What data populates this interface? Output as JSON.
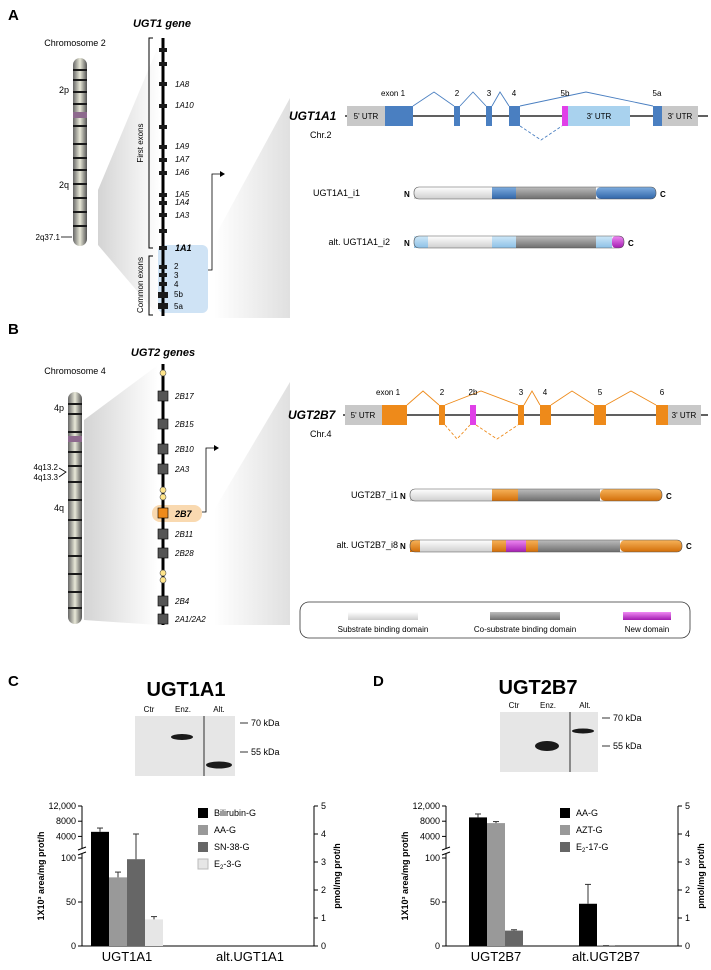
{
  "panels": {
    "a": "A",
    "b": "B",
    "c": "C",
    "d": "D"
  },
  "colors": {
    "ugt1_blue": "#4a7fc1",
    "ugt1_light": "#a9d2ee",
    "ugt2_orange": "#ee8a1a",
    "new_magenta": "#e040e8",
    "utr_gray": "#c8c8c8",
    "highlight_blue": "#cfe3f5",
    "highlight_orange": "#f9d9b0"
  },
  "panel_a": {
    "title": "UGT1 gene",
    "chromosome": "Chromosome 2",
    "arm_p": "2p",
    "arm_q": "2q",
    "locus": "2q37.1",
    "first_exons_label": "First exons",
    "common_exons_label": "Common exons",
    "first_exons": [
      "1A8",
      "1A10",
      "1A9",
      "1A7",
      "1A6",
      "1A5",
      "1A4",
      "1A3"
    ],
    "highlight_exon": "1A1",
    "common_exons": [
      "2",
      "3",
      "4",
      "5b",
      "5a"
    ],
    "gene_name": "UGT1A1",
    "gene_chr": "Chr.2",
    "utr5": "5' UTR",
    "utr3": "3' UTR",
    "utr3_inner": "3' UTR",
    "exon_labels": [
      "exon 1",
      "2",
      "3",
      "4",
      "5b",
      "5a"
    ],
    "isoform1": "UGT1A1_i1",
    "isoform2": "alt. UGT1A1_i2",
    "n_term": "N",
    "c_term": "C"
  },
  "panel_b": {
    "title": "UGT2 genes",
    "chromosome": "Chromosome 4",
    "arm_p": "4p",
    "arm_q": "4q",
    "locus1": "4q13.2",
    "locus2": "4q13.3",
    "genes": [
      "2B17",
      "2B15",
      "2B10",
      "2A3",
      "2B7",
      "2B11",
      "2B28",
      "2B4",
      "2A1/2A2"
    ],
    "highlight_gene": "2B7",
    "gene_name": "UGT2B7",
    "gene_chr": "Chr.4",
    "utr5": "5' UTR",
    "utr3": "3' UTR",
    "exon_labels": [
      "exon 1",
      "2",
      "2b",
      "3",
      "4",
      "5",
      "6"
    ],
    "isoform1": "UGT2B7_i1",
    "isoform2": "alt. UGT2B7_i8",
    "n_term": "N",
    "c_term": "C"
  },
  "legend": {
    "substrate": "Substrate binding domain",
    "cosubstrate": "Co-substrate binding domain",
    "new": "New domain"
  },
  "panel_c": {
    "blot_title": "UGT1A1",
    "lanes": [
      "Ctr",
      "Enz.",
      "Alt."
    ],
    "mw": [
      "70 kDa",
      "55 kDa"
    ],
    "chart_data": {
      "type": "bar",
      "categories": [
        "UGT1A1",
        "alt.UGT1A1"
      ],
      "series": [
        {
          "name": "Bilirubin-G",
          "values": [
            5200,
            0
          ],
          "errors": [
            1000,
            0
          ],
          "axis": "left",
          "color": "#000000"
        },
        {
          "name": "AA-G",
          "values": [
            78,
            0
          ],
          "errors": [
            6,
            0
          ],
          "axis": "left",
          "color": "#999999"
        },
        {
          "name": "SN-38-G",
          "values": [
            3.1,
            0
          ],
          "errors": [
            0.9,
            0
          ],
          "axis": "right",
          "color": "#666666"
        },
        {
          "name": "E2-3-G",
          "values": [
            0.95,
            0
          ],
          "errors": [
            0.1,
            0
          ],
          "axis": "right",
          "color": "#e6e6e6"
        }
      ],
      "ylabel_left": "1X10³ area/mg prot/h",
      "ylabel_right": "pmol/mg prot/h",
      "left_ticks_low": [
        "0",
        "50",
        "100"
      ],
      "left_ticks_high": [
        "4000",
        "8000",
        "12,000"
      ],
      "right_ticks": [
        "0",
        "1",
        "2",
        "3",
        "4",
        "5"
      ],
      "ylim_right": [
        0,
        5
      ]
    }
  },
  "panel_d": {
    "blot_title": "UGT2B7",
    "lanes": [
      "Ctr",
      "Enz.",
      "Alt."
    ],
    "mw": [
      "70 kDa",
      "55 kDa"
    ],
    "chart_data": {
      "type": "bar",
      "categories": [
        "UGT2B7",
        "alt.UGT2B7"
      ],
      "series": [
        {
          "name": "AA-G",
          "values": [
            9000,
            48
          ],
          "errors": [
            900,
            22
          ],
          "axis": "left",
          "color": "#000000"
        },
        {
          "name": "AZT-G",
          "values": [
            7500,
            0.3
          ],
          "errors": [
            400,
            0.1
          ],
          "axis": "left",
          "color": "#999999"
        },
        {
          "name": "E2-17-G",
          "values": [
            0.55,
            0
          ],
          "errors": [
            0.03,
            0
          ],
          "axis": "right",
          "color": "#666666"
        }
      ],
      "ylabel_left": "1X10³ area/mg prot/h",
      "ylabel_right": "pmol/mg prot/h",
      "left_ticks_low": [
        "0",
        "50",
        "100"
      ],
      "left_ticks_high": [
        "4000",
        "8000",
        "12,000"
      ],
      "right_ticks": [
        "0",
        "1",
        "2",
        "3",
        "4",
        "5"
      ],
      "ylim_right": [
        0,
        5
      ]
    }
  }
}
